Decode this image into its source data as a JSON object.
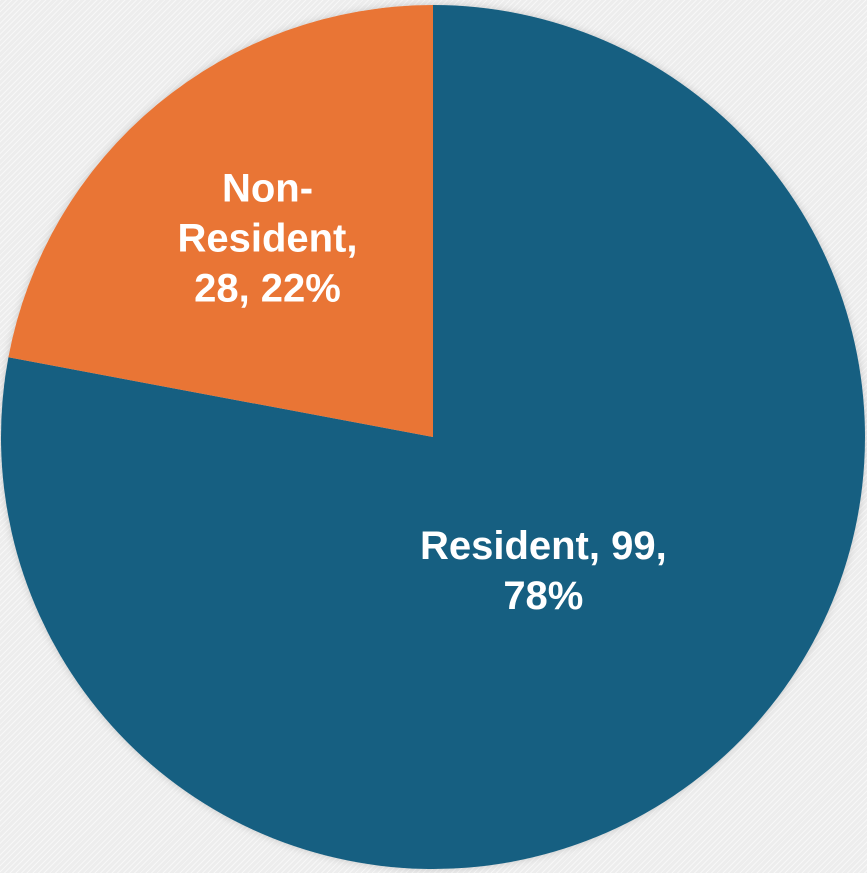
{
  "chart_data": {
    "type": "pie",
    "title": "",
    "slices": [
      {
        "label": "Resident",
        "value": 99,
        "percent": "78%",
        "label_lines": [
          "Resident, 99,",
          "78%"
        ],
        "color": "#175f81"
      },
      {
        "label": "Non-Resident",
        "value": 28,
        "percent": "22%",
        "label_lines": [
          "Non-",
          "Resident,",
          "28, 22%"
        ],
        "color": "#e97434"
      }
    ],
    "start_angle_deg": 0,
    "direction": "clockwise",
    "legend": "none",
    "data_labels": "inside"
  }
}
